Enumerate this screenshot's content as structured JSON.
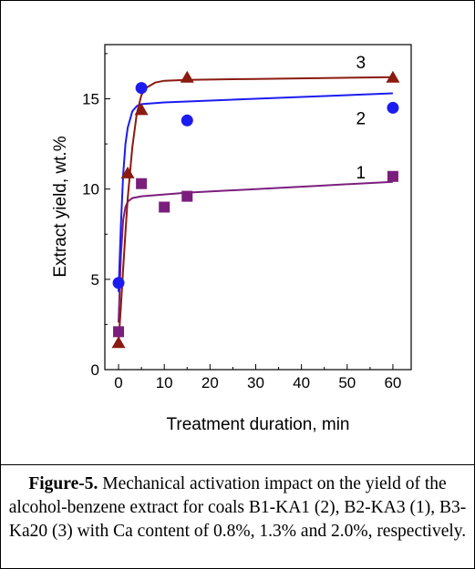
{
  "chart_data": {
    "type": "scatter",
    "xlabel": "Treatment duration, min",
    "ylabel": "Extract yield,  wt.%",
    "xlim": [
      -3,
      64
    ],
    "ylim": [
      0,
      18
    ],
    "x_ticks": [
      0,
      10,
      20,
      30,
      40,
      50,
      60
    ],
    "y_ticks": [
      0,
      5,
      10,
      15
    ],
    "grid": false,
    "series": [
      {
        "name": "1",
        "marker": "square",
        "color": "#7b1f7d",
        "points": [
          [
            0,
            2.1
          ],
          [
            5,
            10.3
          ],
          [
            10,
            9.0
          ],
          [
            15,
            9.6
          ],
          [
            60,
            10.7
          ]
        ],
        "fit": [
          [
            0,
            2.6
          ],
          [
            0.5,
            6.3
          ],
          [
            1,
            8.3
          ],
          [
            1.5,
            9.0
          ],
          [
            2,
            9.3
          ],
          [
            3,
            9.5
          ],
          [
            5,
            9.6
          ],
          [
            10,
            9.7
          ],
          [
            15,
            9.8
          ],
          [
            30,
            10.0
          ],
          [
            45,
            10.2
          ],
          [
            60,
            10.4
          ]
        ]
      },
      {
        "name": "2",
        "marker": "circle",
        "color": "#1c1cf0",
        "points": [
          [
            0,
            4.8
          ],
          [
            5,
            15.6
          ],
          [
            15,
            13.8
          ],
          [
            60,
            14.5
          ]
        ],
        "fit": [
          [
            0,
            4.3
          ],
          [
            0.5,
            8.0
          ],
          [
            1,
            10.8
          ],
          [
            1.5,
            12.5
          ],
          [
            2,
            13.4
          ],
          [
            3,
            14.3
          ],
          [
            4,
            14.6
          ],
          [
            5,
            14.7
          ],
          [
            10,
            14.8
          ],
          [
            20,
            14.9
          ],
          [
            40,
            15.1
          ],
          [
            60,
            15.3
          ]
        ]
      },
      {
        "name": "3",
        "marker": "triangle",
        "color": "#8b1a10",
        "points": [
          [
            0,
            1.5
          ],
          [
            2,
            10.9
          ],
          [
            5,
            14.4
          ],
          [
            15,
            16.2
          ],
          [
            60,
            16.2
          ]
        ],
        "fit": [
          [
            0,
            1.5
          ],
          [
            0.5,
            3.5
          ],
          [
            1,
            5.6
          ],
          [
            1.5,
            7.6
          ],
          [
            2,
            9.5
          ],
          [
            3,
            12.3
          ],
          [
            4,
            14.2
          ],
          [
            5,
            15.2
          ],
          [
            6,
            15.6
          ],
          [
            8,
            15.9
          ],
          [
            10,
            16.0
          ],
          [
            15,
            16.05
          ],
          [
            30,
            16.1
          ],
          [
            45,
            16.15
          ],
          [
            60,
            16.2
          ]
        ]
      }
    ]
  },
  "caption": {
    "figure_label": "Figure-5.",
    "text": " Mechanical activation impact on the yield of the alcohol-benzene extract for coals B1-KA1 (2), B2-KA3 (1), B3-Ka20 (3) with Ca content of 0.8%, 1.3% and 2.0%, respectively."
  }
}
